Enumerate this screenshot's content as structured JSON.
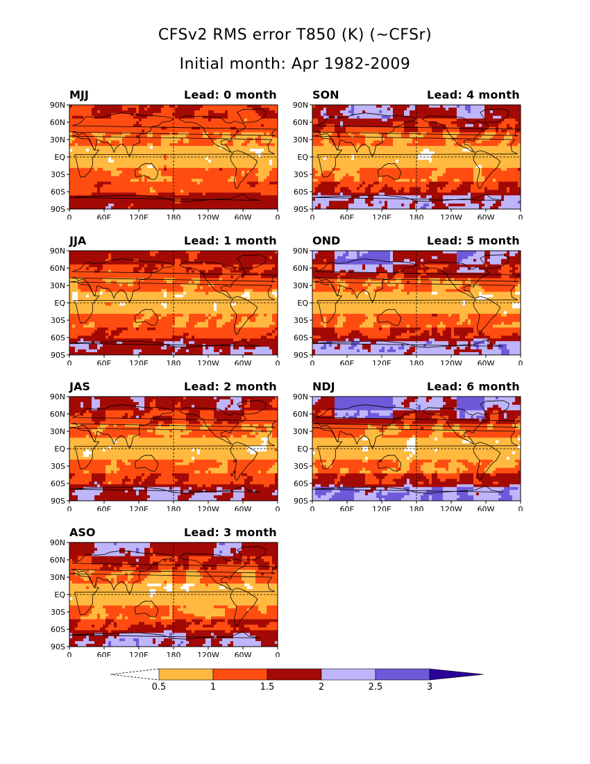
{
  "title": "CFSv2 RMS error T850 (K) (~CFSr)",
  "subtitle": "Initial month: Apr 1982-2009",
  "panels": [
    {
      "season": "MJJ",
      "lead": "Lead: 0 month"
    },
    {
      "season": "JJA",
      "lead": "Lead: 1 month"
    },
    {
      "season": "JAS",
      "lead": "Lead: 2 month"
    },
    {
      "season": "ASO",
      "lead": "Lead: 3 month"
    },
    {
      "season": "SON",
      "lead": "Lead: 4 month"
    },
    {
      "season": "OND",
      "lead": "Lead: 5 month"
    },
    {
      "season": "NDJ",
      "lead": "Lead: 6 month"
    }
  ],
  "lat_labels": [
    "90N",
    "60N",
    "30N",
    "EQ",
    "30S",
    "60S",
    "90S"
  ],
  "lon_labels": [
    "0",
    "60E",
    "120E",
    "180",
    "120W",
    "60W",
    "0"
  ],
  "colorbar": {
    "labels": [
      "0.5",
      "1",
      "1.5",
      "2",
      "2.5",
      "3"
    ],
    "colors": [
      "#FFB940",
      "#FF4D12",
      "#A30A05",
      "#BFB5FA",
      "#6E5AD9",
      "#2A0096"
    ]
  }
}
